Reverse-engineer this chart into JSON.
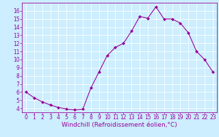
{
  "x": [
    0,
    1,
    2,
    3,
    4,
    5,
    6,
    7,
    8,
    9,
    10,
    11,
    12,
    13,
    14,
    15,
    16,
    17,
    18,
    19,
    20,
    21,
    22,
    23
  ],
  "y": [
    6.0,
    5.3,
    4.8,
    4.4,
    4.1,
    3.9,
    3.8,
    3.9,
    6.5,
    8.5,
    10.5,
    11.5,
    12.0,
    13.5,
    15.3,
    15.1,
    16.5,
    15.0,
    15.0,
    14.5,
    13.3,
    11.0,
    10.0,
    8.5
  ],
  "line_color": "#990099",
  "marker": "D",
  "marker_size": 2,
  "bg_color": "#cceeff",
  "grid_color": "#ffffff",
  "xlabel": "Windchill (Refroidissement éolien,°C)",
  "xlim": [
    -0.5,
    23.5
  ],
  "ylim": [
    3.5,
    17.0
  ],
  "yticks": [
    4,
    5,
    6,
    7,
    8,
    9,
    10,
    11,
    12,
    13,
    14,
    15,
    16
  ],
  "xticks": [
    0,
    1,
    2,
    3,
    4,
    5,
    6,
    7,
    8,
    9,
    10,
    11,
    12,
    13,
    14,
    15,
    16,
    17,
    18,
    19,
    20,
    21,
    22,
    23
  ],
  "tick_color": "#990099",
  "label_color": "#990099",
  "axis_color": "#990099",
  "font_size": 5.5,
  "xlabel_font_size": 6.5
}
